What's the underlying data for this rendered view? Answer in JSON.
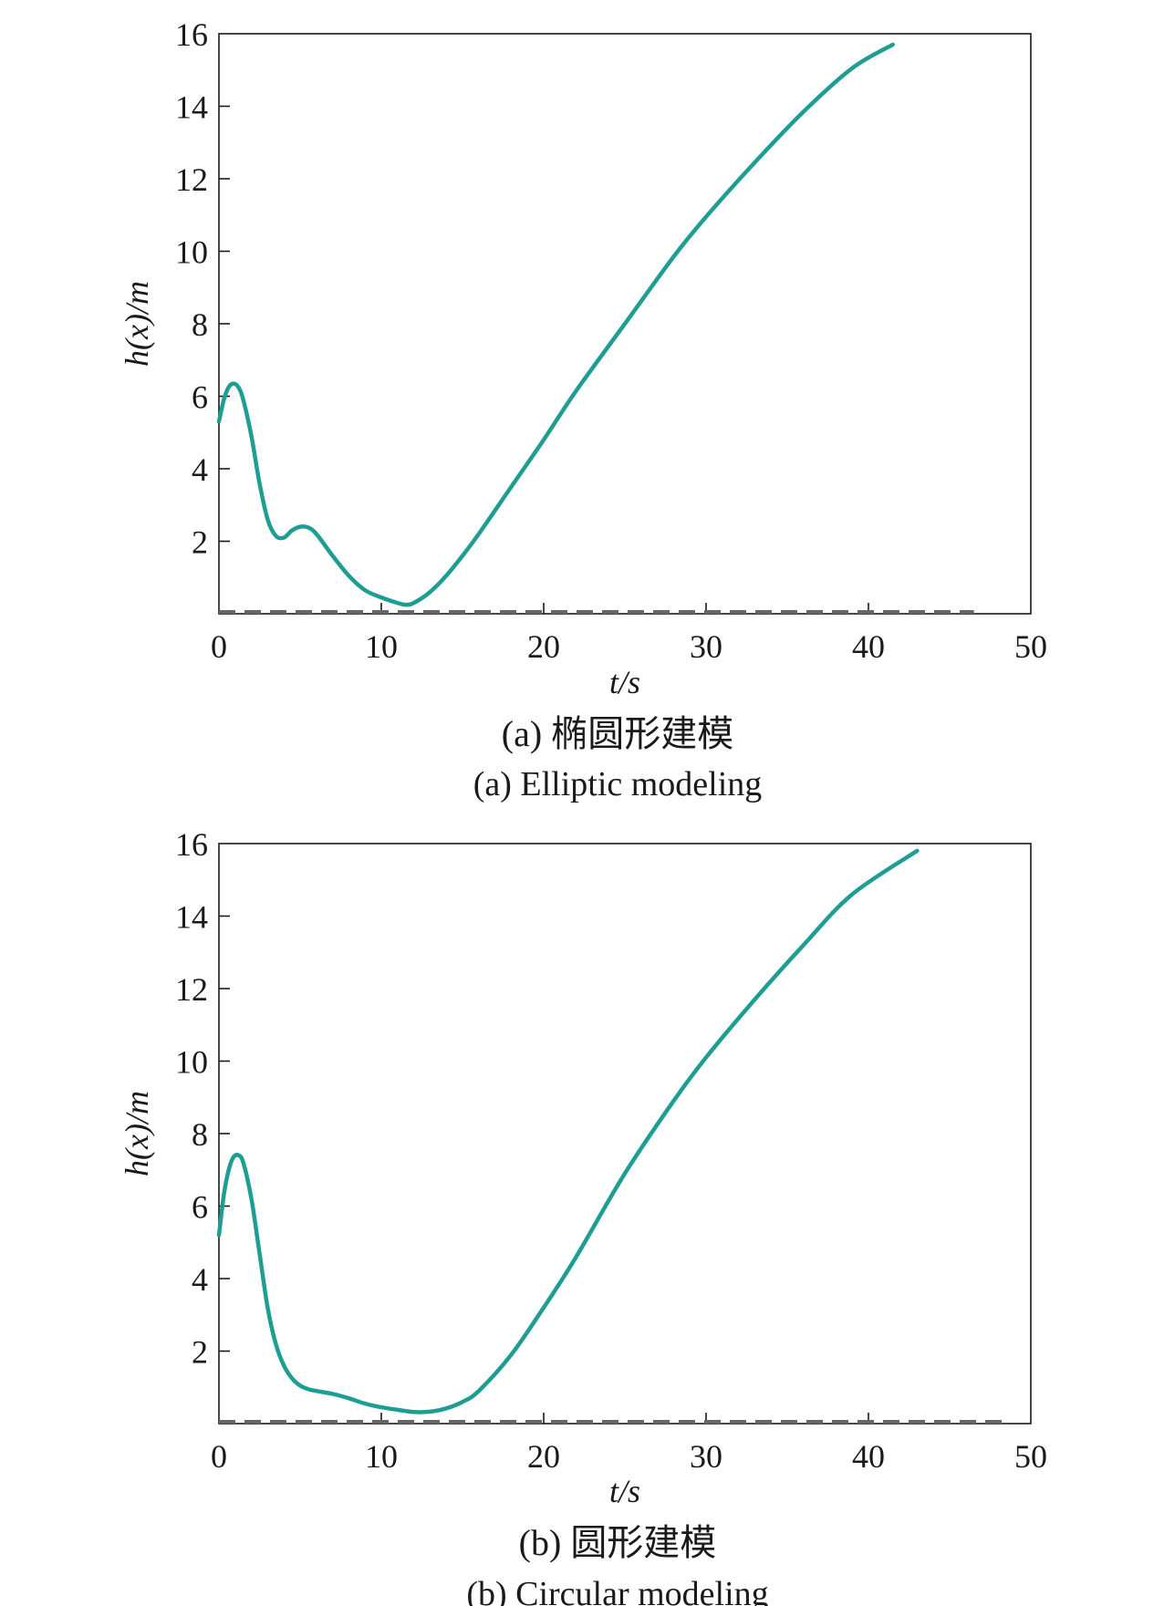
{
  "colors": {
    "curve": "#1e9e92",
    "safety_line": "#666666",
    "axis": "#1a1a1a"
  },
  "chart_data": [
    {
      "type": "line",
      "caption_cn": "(a) 椭圆形建模",
      "caption_en": "(a) Elliptic modeling",
      "xlabel": "t/s",
      "ylabel": "h(x)/m",
      "xlim": [
        0,
        50
      ],
      "ylim": [
        0,
        16
      ],
      "xticks": [
        0,
        10,
        20,
        30,
        40,
        50
      ],
      "yticks": [
        2,
        4,
        6,
        8,
        10,
        12,
        14,
        16
      ],
      "grid": false,
      "series": [
        {
          "style": "solid",
          "x": [
            0,
            0.3,
            0.6,
            0.9,
            1.2,
            1.5,
            2.0,
            2.5,
            3.0,
            3.5,
            4.0,
            4.5,
            5.0,
            5.5,
            6.0,
            7.0,
            8.0,
            9.0,
            10.0,
            11.0,
            11.5,
            12.0,
            13.0,
            14.0,
            15.0,
            16.0,
            18.0,
            20.0,
            22.0,
            25.0,
            28.0,
            30.0,
            33.0,
            36.0,
            39.0,
            41.5
          ],
          "y": [
            5.3,
            5.9,
            6.25,
            6.35,
            6.25,
            5.9,
            4.9,
            3.6,
            2.6,
            2.15,
            2.1,
            2.3,
            2.4,
            2.38,
            2.2,
            1.6,
            1.05,
            0.65,
            0.45,
            0.3,
            0.25,
            0.3,
            0.6,
            1.05,
            1.6,
            2.2,
            3.5,
            4.8,
            6.15,
            8.0,
            9.85,
            10.95,
            12.45,
            13.85,
            15.05,
            15.7
          ]
        },
        {
          "style": "dashed",
          "x": [
            0,
            46.5
          ],
          "y": [
            0.05,
            0.05
          ]
        }
      ]
    },
    {
      "type": "line",
      "caption_cn": "(b) 圆形建模",
      "caption_en": "(b) Circular modeling",
      "xlabel": "t/s",
      "ylabel": "h(x)/m",
      "xlim": [
        0,
        50
      ],
      "ylim": [
        0,
        16
      ],
      "xticks": [
        0,
        10,
        20,
        30,
        40,
        50
      ],
      "yticks": [
        2,
        4,
        6,
        8,
        10,
        12,
        14,
        16
      ],
      "grid": false,
      "series": [
        {
          "style": "solid",
          "x": [
            0,
            0.3,
            0.6,
            0.9,
            1.2,
            1.5,
            2.0,
            2.5,
            3.0,
            3.5,
            4.0,
            4.5,
            5.0,
            5.5,
            6.0,
            7.0,
            8.0,
            9.0,
            10.0,
            11.0,
            12.0,
            13.0,
            14.0,
            15.0,
            16.0,
            18.0,
            20.0,
            22.0,
            25.0,
            28.0,
            30.0,
            33.0,
            36.0,
            39.0,
            43.0
          ],
          "y": [
            5.2,
            6.3,
            7.0,
            7.35,
            7.4,
            7.2,
            6.2,
            4.7,
            3.2,
            2.2,
            1.6,
            1.25,
            1.05,
            0.95,
            0.9,
            0.82,
            0.7,
            0.55,
            0.45,
            0.38,
            0.32,
            0.33,
            0.42,
            0.6,
            0.9,
            1.9,
            3.2,
            4.6,
            6.9,
            8.9,
            10.1,
            11.7,
            13.2,
            14.6,
            15.8
          ]
        },
        {
          "style": "dashed",
          "x": [
            0,
            48.5
          ],
          "y": [
            0.05,
            0.05
          ]
        }
      ]
    }
  ]
}
